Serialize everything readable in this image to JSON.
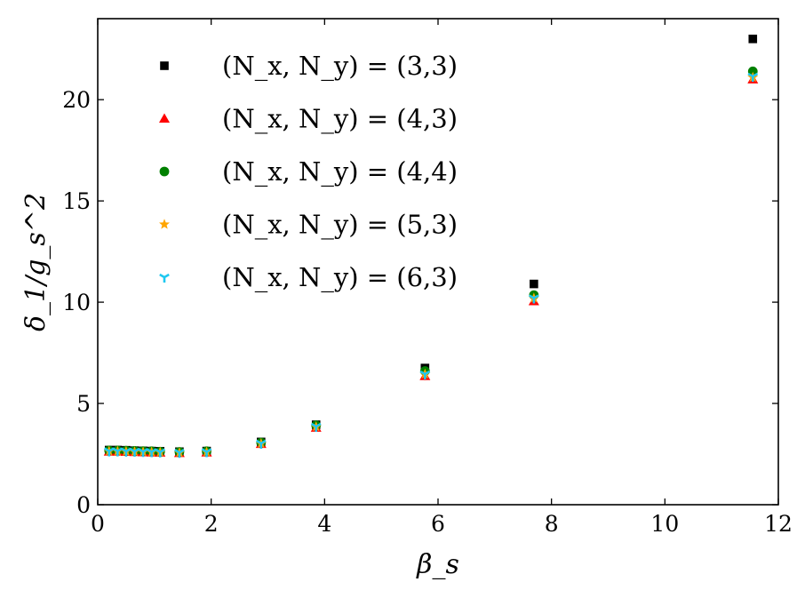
{
  "chart_data": {
    "type": "scatter",
    "title": "",
    "xlabel": "β_s",
    "ylabel": "δ_1/g_s^2",
    "xlim": [
      0,
      12
    ],
    "ylim": [
      0,
      24
    ],
    "xticks": [
      "0",
      "2",
      "4",
      "6",
      "8",
      "10",
      "12"
    ],
    "yticks": [
      "0",
      "5",
      "10",
      "15",
      "20"
    ],
    "x_tick_values": [
      0,
      2,
      4,
      6,
      8,
      10,
      12
    ],
    "y_tick_values": [
      0,
      5,
      10,
      15,
      20
    ],
    "grid": false,
    "legend_position": "upper-left",
    "series": [
      {
        "name": "(N_x, N_y) = (3,3)",
        "marker": "square",
        "color": "#000000",
        "x": [
          0.2,
          0.35,
          0.5,
          0.65,
          0.8,
          0.95,
          1.1,
          1.44,
          1.92,
          2.88,
          3.85,
          5.77,
          7.69,
          11.55
        ],
        "y": [
          2.7,
          2.7,
          2.69,
          2.67,
          2.66,
          2.65,
          2.64,
          2.62,
          2.65,
          3.1,
          3.95,
          6.75,
          10.9,
          23.0
        ]
      },
      {
        "name": "(N_x, N_y) = (4,3)",
        "marker": "triangle",
        "color": "#ff0000",
        "x": [
          0.2,
          0.35,
          0.5,
          0.65,
          0.8,
          0.95,
          1.1,
          1.44,
          1.92,
          2.88,
          3.85,
          5.77,
          7.69,
          11.55
        ],
        "y": [
          2.62,
          2.62,
          2.61,
          2.6,
          2.59,
          2.58,
          2.57,
          2.55,
          2.58,
          3.0,
          3.8,
          6.35,
          10.05,
          21.0
        ]
      },
      {
        "name": "(N_x, N_y) = (4,4)",
        "marker": "circle",
        "color": "#008000",
        "x": [
          0.2,
          0.35,
          0.5,
          0.65,
          0.8,
          0.95,
          1.1,
          1.44,
          1.92,
          2.88,
          3.85,
          5.77,
          7.69,
          11.55
        ],
        "y": [
          2.68,
          2.68,
          2.67,
          2.66,
          2.65,
          2.64,
          2.62,
          2.61,
          2.64,
          3.07,
          3.92,
          6.6,
          10.35,
          21.4
        ]
      },
      {
        "name": "(N_x, N_y) = (5,3)",
        "marker": "star",
        "color": "#ffa500",
        "x": [
          0.2,
          0.35,
          0.5,
          0.65,
          0.8,
          0.95,
          1.1,
          1.44,
          1.92,
          2.88,
          3.85,
          5.77,
          7.69,
          11.55
        ],
        "y": [
          2.64,
          2.64,
          2.63,
          2.62,
          2.61,
          2.6,
          2.59,
          2.57,
          2.6,
          3.02,
          3.85,
          6.45,
          10.2,
          21.1
        ]
      },
      {
        "name": "(N_x, N_y) = (6,3)",
        "marker": "tri_down",
        "color": "#1ec8f0",
        "x": [
          0.2,
          0.35,
          0.5,
          0.65,
          0.8,
          0.95,
          1.1,
          1.44,
          1.92,
          2.88,
          3.85,
          5.77,
          7.69,
          11.55
        ],
        "y": [
          2.65,
          2.65,
          2.64,
          2.63,
          2.62,
          2.61,
          2.6,
          2.58,
          2.61,
          3.03,
          3.86,
          6.45,
          10.2,
          21.15
        ]
      }
    ]
  }
}
